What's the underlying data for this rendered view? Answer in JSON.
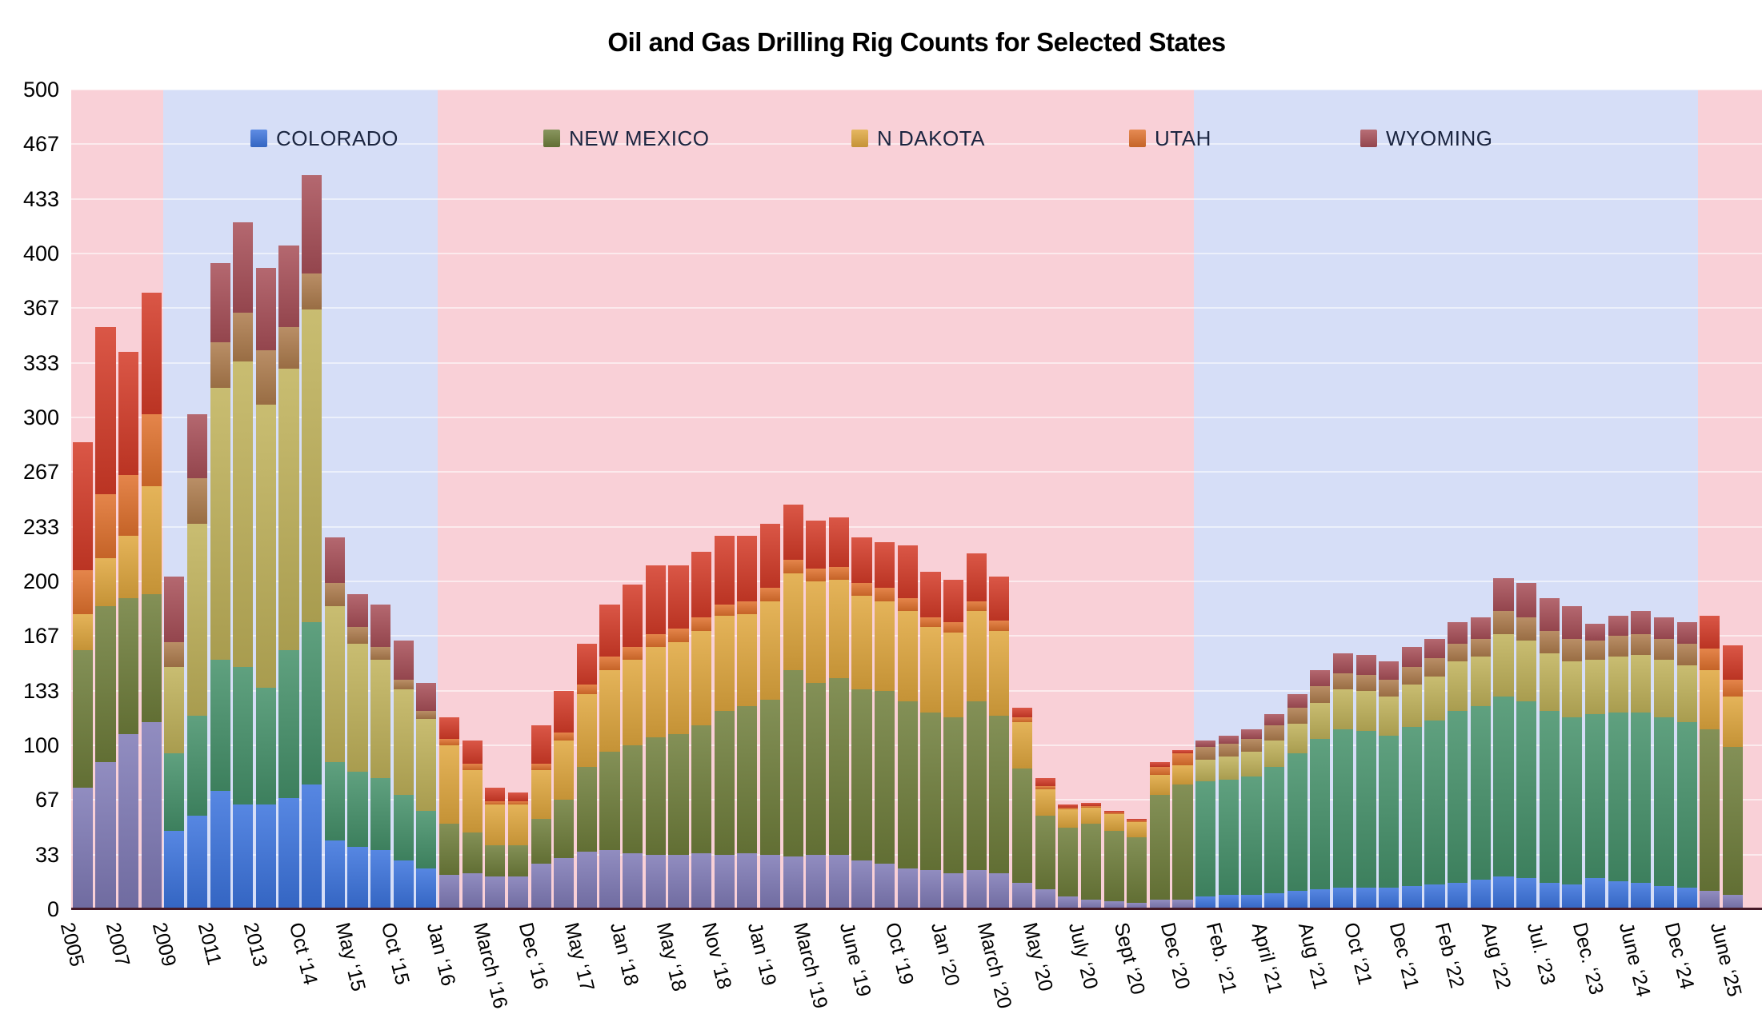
{
  "title": "Oil and Gas Drilling Rig Counts for Selected States",
  "legend": {
    "items": [
      {
        "label": "COLORADO",
        "series": "colorado",
        "band": "blue"
      },
      {
        "label": "NEW MEXICO",
        "series": "new_mexico",
        "band": "pink"
      },
      {
        "label": "N DAKOTA",
        "series": "n_dakota",
        "band": "pink"
      },
      {
        "label": "UTAH",
        "series": "utah",
        "band": "pink"
      },
      {
        "label": "WYOMING",
        "series": "wyoming",
        "band": "blue"
      }
    ]
  },
  "colors": {
    "band_pink": "#f9d0d7",
    "band_blue": "#d6def7",
    "gridline": "rgba(255,255,255,0.55)",
    "baseline": "#451a28",
    "pink_band_series": {
      "colorado": "#7f7ab6",
      "new_mexico": "#6f7e3b",
      "n_dakota": "#e0a73e",
      "utah": "#e0712d",
      "wyoming": "#d43b28"
    },
    "blue_band_series": {
      "colorado": "#3b73dd",
      "new_mexico": "#45916a",
      "n_dakota": "#c0b25a",
      "utah": "#ae7c4d",
      "wyoming": "#a84f58"
    }
  },
  "y_axis": {
    "ticks": [
      "0",
      "33",
      "67",
      "100",
      "133",
      "167",
      "200",
      "233",
      "267",
      "300",
      "333",
      "367",
      "400",
      "433",
      "467",
      "500"
    ],
    "max": 500
  },
  "chart_data": {
    "type": "bar",
    "stacked": true,
    "title": "Oil and Gas Drilling Rig Counts for Selected States",
    "series": [
      "COLORADO",
      "NEW MEXICO",
      "N DAKOTA",
      "UTAH",
      "WYOMING"
    ],
    "series_keys": [
      "colorado",
      "new_mexico",
      "n_dakota",
      "utah",
      "wyoming"
    ],
    "ylim": [
      0,
      500
    ],
    "grid": true,
    "legend_position": "top-inside",
    "era_shading": [
      {
        "band": "pink",
        "from_bar": 1,
        "to_bar": 4
      },
      {
        "band": "blue",
        "from_bar": 5,
        "to_bar": 16
      },
      {
        "band": "pink",
        "from_bar": 17,
        "to_bar": 49
      },
      {
        "band": "blue",
        "from_bar": 50,
        "to_bar": 71
      },
      {
        "band": "pink",
        "from_bar": 72,
        "to_bar": 73,
        "extends_to_edge": true
      }
    ],
    "bars": [
      {
        "label": "2005",
        "values": [
          74,
          84,
          22,
          27,
          78
        ]
      },
      {
        "label": "",
        "values": [
          90,
          95,
          29,
          39,
          102
        ]
      },
      {
        "label": "2007",
        "values": [
          107,
          83,
          38,
          37,
          75
        ]
      },
      {
        "label": "",
        "values": [
          114,
          78,
          66,
          44,
          74
        ]
      },
      {
        "label": "2009",
        "values": [
          48,
          47,
          53,
          15,
          40
        ]
      },
      {
        "label": "",
        "values": [
          57,
          61,
          117,
          28,
          39
        ]
      },
      {
        "label": "2011",
        "values": [
          72,
          80,
          166,
          28,
          48
        ]
      },
      {
        "label": "",
        "values": [
          64,
          84,
          186,
          30,
          55
        ]
      },
      {
        "label": "2013",
        "values": [
          64,
          71,
          173,
          33,
          50
        ]
      },
      {
        "label": "",
        "values": [
          68,
          90,
          172,
          25,
          50
        ]
      },
      {
        "label": "Oct ‘14",
        "values": [
          76,
          99,
          191,
          22,
          60
        ]
      },
      {
        "label": "",
        "values": [
          42,
          48,
          95,
          14,
          28
        ]
      },
      {
        "label": "May ‘15",
        "values": [
          38,
          46,
          78,
          10,
          20
        ]
      },
      {
        "label": "",
        "values": [
          36,
          44,
          72,
          8,
          26
        ]
      },
      {
        "label": "Oct ‘15",
        "values": [
          30,
          40,
          64,
          6,
          24
        ]
      },
      {
        "label": "",
        "values": [
          25,
          35,
          56,
          5,
          17
        ]
      },
      {
        "label": "Jan ‘16",
        "values": [
          21,
          31,
          48,
          4,
          13
        ]
      },
      {
        "label": "",
        "values": [
          22,
          25,
          38,
          4,
          14
        ]
      },
      {
        "label": "March ‘16",
        "values": [
          20,
          19,
          25,
          2,
          8
        ]
      },
      {
        "label": "",
        "values": [
          20,
          19,
          25,
          2,
          5
        ]
      },
      {
        "label": "Dec ‘16",
        "values": [
          28,
          27,
          30,
          4,
          23
        ]
      },
      {
        "label": "",
        "values": [
          31,
          36,
          36,
          5,
          25
        ]
      },
      {
        "label": "May ‘17",
        "values": [
          35,
          52,
          44,
          6,
          25
        ]
      },
      {
        "label": "",
        "values": [
          36,
          60,
          50,
          8,
          32
        ]
      },
      {
        "label": "Jan ‘18",
        "values": [
          34,
          66,
          52,
          8,
          38
        ]
      },
      {
        "label": "",
        "values": [
          33,
          72,
          55,
          8,
          42
        ]
      },
      {
        "label": "May ‘18",
        "values": [
          33,
          74,
          56,
          8,
          39
        ]
      },
      {
        "label": "",
        "values": [
          34,
          78,
          58,
          8,
          40
        ]
      },
      {
        "label": "Nov ‘18",
        "values": [
          33,
          88,
          58,
          7,
          42
        ]
      },
      {
        "label": "",
        "values": [
          34,
          90,
          56,
          8,
          40
        ]
      },
      {
        "label": "Jan ‘19",
        "values": [
          33,
          95,
          60,
          8,
          39
        ]
      },
      {
        "label": "",
        "values": [
          32,
          114,
          59,
          8,
          34
        ]
      },
      {
        "label": "March ‘19",
        "values": [
          33,
          105,
          62,
          8,
          29
        ]
      },
      {
        "label": "",
        "values": [
          33,
          108,
          60,
          8,
          30
        ]
      },
      {
        "label": "June ‘19",
        "values": [
          30,
          104,
          57,
          8,
          28
        ]
      },
      {
        "label": "",
        "values": [
          28,
          105,
          55,
          8,
          28
        ]
      },
      {
        "label": "Oct ‘19",
        "values": [
          25,
          102,
          55,
          8,
          32
        ]
      },
      {
        "label": "",
        "values": [
          24,
          96,
          52,
          6,
          28
        ]
      },
      {
        "label": "Jan ‘20",
        "values": [
          22,
          95,
          52,
          6,
          26
        ]
      },
      {
        "label": "",
        "values": [
          24,
          103,
          55,
          6,
          29
        ]
      },
      {
        "label": "March ‘20",
        "values": [
          22,
          96,
          52,
          6,
          27
        ]
      },
      {
        "label": "",
        "values": [
          16,
          70,
          28,
          3,
          6
        ]
      },
      {
        "label": "May ‘20",
        "values": [
          12,
          45,
          16,
          2,
          5
        ]
      },
      {
        "label": "",
        "values": [
          8,
          42,
          11,
          1,
          2
        ]
      },
      {
        "label": "July ‘20",
        "values": [
          6,
          46,
          10,
          1,
          2
        ]
      },
      {
        "label": "",
        "values": [
          5,
          43,
          10,
          1,
          1
        ]
      },
      {
        "label": "Sept ‘20",
        "values": [
          4,
          40,
          9,
          1,
          1
        ]
      },
      {
        "label": "",
        "values": [
          6,
          64,
          12,
          5,
          3
        ]
      },
      {
        "label": "Dec ‘20",
        "values": [
          6,
          70,
          12,
          7,
          2
        ]
      },
      {
        "label": "",
        "values": [
          8,
          70,
          13,
          8,
          4
        ]
      },
      {
        "label": "Feb. ‘21",
        "values": [
          9,
          70,
          14,
          8,
          5
        ]
      },
      {
        "label": "",
        "values": [
          9,
          72,
          15,
          8,
          6
        ]
      },
      {
        "label": "April ‘21",
        "values": [
          10,
          77,
          16,
          9,
          7
        ]
      },
      {
        "label": "",
        "values": [
          11,
          84,
          18,
          10,
          8
        ]
      },
      {
        "label": "Aug ‘21",
        "values": [
          12,
          92,
          22,
          10,
          10
        ]
      },
      {
        "label": "",
        "values": [
          13,
          97,
          24,
          10,
          12
        ]
      },
      {
        "label": "Oct ‘21",
        "values": [
          13,
          96,
          24,
          10,
          12
        ]
      },
      {
        "label": "",
        "values": [
          13,
          93,
          24,
          10,
          11
        ]
      },
      {
        "label": "Dec ‘21",
        "values": [
          14,
          97,
          26,
          11,
          12
        ]
      },
      {
        "label": "",
        "values": [
          15,
          100,
          27,
          11,
          12
        ]
      },
      {
        "label": "Feb ‘22",
        "values": [
          16,
          105,
          30,
          11,
          13
        ]
      },
      {
        "label": "",
        "values": [
          18,
          106,
          30,
          11,
          13
        ]
      },
      {
        "label": "Aug ‘22",
        "values": [
          20,
          110,
          38,
          14,
          20
        ]
      },
      {
        "label": "",
        "values": [
          19,
          108,
          37,
          14,
          21
        ]
      },
      {
        "label": "Jul. ‘23",
        "values": [
          16,
          105,
          35,
          14,
          20
        ]
      },
      {
        "label": "",
        "values": [
          15,
          102,
          34,
          14,
          20
        ]
      },
      {
        "label": "Dec. ‘23",
        "values": [
          19,
          100,
          33,
          12,
          10
        ]
      },
      {
        "label": "",
        "values": [
          17,
          103,
          34,
          13,
          12
        ]
      },
      {
        "label": "June ‘24",
        "values": [
          16,
          104,
          35,
          13,
          14
        ]
      },
      {
        "label": "",
        "values": [
          14,
          103,
          35,
          13,
          13
        ]
      },
      {
        "label": "Dec ‘24",
        "values": [
          13,
          101,
          35,
          13,
          13
        ]
      },
      {
        "label": "",
        "values": [
          11,
          99,
          36,
          13,
          20
        ]
      },
      {
        "label": "June ‘25",
        "values": [
          9,
          90,
          31,
          10,
          21
        ]
      }
    ]
  }
}
